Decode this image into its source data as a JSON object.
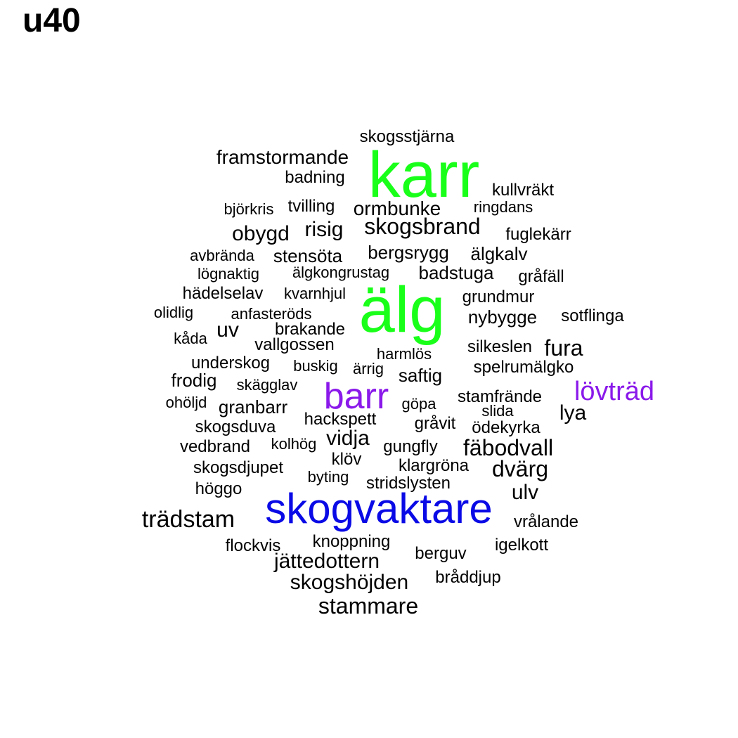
{
  "chart_data": {
    "type": "wordcloud",
    "title": "u40",
    "colors": {
      "tier1": "#19ff19",
      "tier2": "#8a19ea",
      "tier3": "#0a0ae6",
      "base": "#000000"
    },
    "words": [
      {
        "text": "karr",
        "size": 92,
        "color": "#19ff19"
      },
      {
        "text": "älg",
        "size": 92,
        "color": "#19ff19"
      },
      {
        "text": "skogvaktare",
        "size": 60,
        "color": "#0a0ae6"
      },
      {
        "text": "barr",
        "size": 52,
        "color": "#8a19ea"
      },
      {
        "text": "lövträd",
        "size": 38,
        "color": "#8a19ea"
      },
      {
        "text": "trädstam",
        "size": 34,
        "color": "#000000"
      },
      {
        "text": "stammare",
        "size": 32,
        "color": "#000000"
      },
      {
        "text": "fäbodvall",
        "size": 32,
        "color": "#000000"
      },
      {
        "text": "dvärg",
        "size": 32,
        "color": "#000000"
      },
      {
        "text": "fura",
        "size": 32,
        "color": "#000000"
      },
      {
        "text": "skogsbrand",
        "size": 32,
        "color": "#000000"
      },
      {
        "text": "obygd",
        "size": 30,
        "color": "#000000"
      },
      {
        "text": "risig",
        "size": 30,
        "color": "#000000"
      },
      {
        "text": "uv",
        "size": 30,
        "color": "#000000"
      },
      {
        "text": "ulv",
        "size": 30,
        "color": "#000000"
      },
      {
        "text": "jättedottern",
        "size": 30,
        "color": "#000000"
      },
      {
        "text": "skogshöjden",
        "size": 30,
        "color": "#000000"
      },
      {
        "text": "vidja",
        "size": 30,
        "color": "#000000"
      },
      {
        "text": "lya",
        "size": 30,
        "color": "#000000"
      },
      {
        "text": "framstormande",
        "size": 28,
        "color": "#000000"
      },
      {
        "text": "ormbunke",
        "size": 28,
        "color": "#000000"
      },
      {
        "text": "stensöta",
        "size": 26,
        "color": "#000000"
      },
      {
        "text": "bergsrygg",
        "size": 26,
        "color": "#000000"
      },
      {
        "text": "älgkalv",
        "size": 26,
        "color": "#000000"
      },
      {
        "text": "badstuga",
        "size": 26,
        "color": "#000000"
      },
      {
        "text": "nybygge",
        "size": 26,
        "color": "#000000"
      },
      {
        "text": "saftig",
        "size": 26,
        "color": "#000000"
      },
      {
        "text": "frodig",
        "size": 26,
        "color": "#000000"
      },
      {
        "text": "granbarr",
        "size": 26,
        "color": "#000000"
      },
      {
        "text": "kullvräkt",
        "size": 24,
        "color": "#000000"
      },
      {
        "text": "fuglekärr",
        "size": 24,
        "color": "#000000"
      },
      {
        "text": "grundmur",
        "size": 24,
        "color": "#000000"
      },
      {
        "text": "stamfrände",
        "size": 24,
        "color": "#000000"
      },
      {
        "text": "hackspett",
        "size": 24,
        "color": "#000000"
      },
      {
        "text": "gråvit",
        "size": 24,
        "color": "#000000"
      },
      {
        "text": "gungfly",
        "size": 24,
        "color": "#000000"
      },
      {
        "text": "klöv",
        "size": 24,
        "color": "#000000"
      },
      {
        "text": "skogsdjupet",
        "size": 24,
        "color": "#000000"
      },
      {
        "text": "höggo",
        "size": 24,
        "color": "#000000"
      },
      {
        "text": "berguv",
        "size": 24,
        "color": "#000000"
      },
      {
        "text": "knoppning",
        "size": 24,
        "color": "#000000"
      },
      {
        "text": "flockvis",
        "size": 24,
        "color": "#000000"
      },
      {
        "text": "vrålande",
        "size": 24,
        "color": "#000000"
      },
      {
        "text": "igelkott",
        "size": 24,
        "color": "#000000"
      },
      {
        "text": "bråddjup",
        "size": 24,
        "color": "#000000"
      },
      {
        "text": "underskog",
        "size": 24,
        "color": "#000000"
      },
      {
        "text": "silkeslen",
        "size": 24,
        "color": "#000000"
      },
      {
        "text": "vedbrand",
        "size": 24,
        "color": "#000000"
      },
      {
        "text": "skogsduva",
        "size": 24,
        "color": "#000000"
      },
      {
        "text": "ödekyrka",
        "size": 24,
        "color": "#000000"
      },
      {
        "text": "brakande",
        "size": 24,
        "color": "#000000"
      },
      {
        "text": "vallgossen",
        "size": 24,
        "color": "#000000"
      },
      {
        "text": "gråfäll",
        "size": 24,
        "color": "#000000"
      },
      {
        "text": "hädelselav",
        "size": 24,
        "color": "#000000"
      },
      {
        "text": "skogsstjärna",
        "size": 24,
        "color": "#000000"
      },
      {
        "text": "badning",
        "size": 24,
        "color": "#000000"
      },
      {
        "text": "klargröna",
        "size": 24,
        "color": "#000000"
      },
      {
        "text": "stridslysten",
        "size": 24,
        "color": "#000000"
      },
      {
        "text": "spelrumälgko",
        "size": 24,
        "color": "#000000"
      },
      {
        "text": "sotflinga",
        "size": 24,
        "color": "#000000"
      },
      {
        "text": "tvilling",
        "size": 24,
        "color": "#000000"
      },
      {
        "text": "björkris",
        "size": 22,
        "color": "#000000"
      },
      {
        "text": "ringdans",
        "size": 22,
        "color": "#000000"
      },
      {
        "text": "avbrända",
        "size": 22,
        "color": "#000000"
      },
      {
        "text": "lögnaktig",
        "size": 22,
        "color": "#000000"
      },
      {
        "text": "älgkongrustag",
        "size": 22,
        "color": "#000000"
      },
      {
        "text": "kvarnhjul",
        "size": 22,
        "color": "#000000"
      },
      {
        "text": "olidlig",
        "size": 22,
        "color": "#000000"
      },
      {
        "text": "anfasteröds",
        "size": 22,
        "color": "#000000"
      },
      {
        "text": "kåda",
        "size": 22,
        "color": "#000000"
      },
      {
        "text": "harmlös",
        "size": 22,
        "color": "#000000"
      },
      {
        "text": "buskig",
        "size": 22,
        "color": "#000000"
      },
      {
        "text": "ärrig",
        "size": 22,
        "color": "#000000"
      },
      {
        "text": "skägglav",
        "size": 22,
        "color": "#000000"
      },
      {
        "text": "ohöljd",
        "size": 22,
        "color": "#000000"
      },
      {
        "text": "göpa",
        "size": 22,
        "color": "#000000"
      },
      {
        "text": "slida",
        "size": 22,
        "color": "#000000"
      },
      {
        "text": "kolhög",
        "size": 22,
        "color": "#000000"
      },
      {
        "text": "byting",
        "size": 22,
        "color": "#000000"
      }
    ]
  }
}
